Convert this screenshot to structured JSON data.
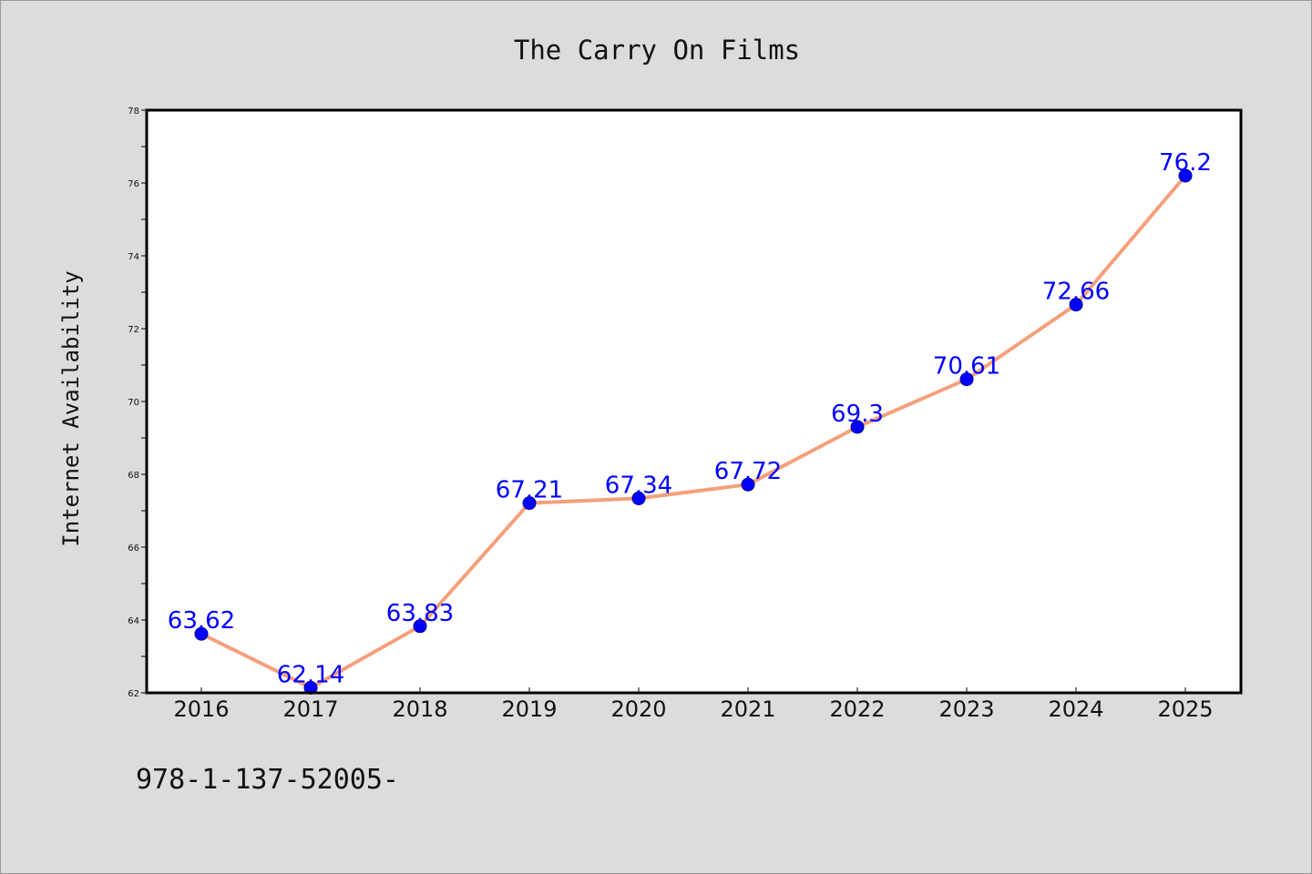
{
  "chart_data": {
    "type": "line",
    "title": "The Carry On Films",
    "xlabel": "",
    "ylabel": "Internet Availability",
    "categories": [
      "2016",
      "2017",
      "2018",
      "2019",
      "2020",
      "2021",
      "2022",
      "2023",
      "2024",
      "2025"
    ],
    "series": [
      {
        "values": [
          63.62,
          62.14,
          63.83,
          67.21,
          67.34,
          67.72,
          69.3,
          70.61,
          72.66,
          76.2
        ],
        "labels": [
          "63.62",
          "62.14",
          "63.83",
          "67.21",
          "67.34",
          "67.72",
          "69.3",
          "70.61",
          "72.66",
          "76.2"
        ],
        "line_color": "#f4a07c",
        "marker_color": "#0000ff"
      }
    ],
    "ylim": [
      62,
      78
    ],
    "yticks": [
      62,
      64,
      66,
      68,
      70,
      72,
      74,
      76,
      78
    ],
    "ytick_labels": [
      "62",
      "64",
      "66",
      "68",
      "70",
      "72",
      "74",
      "76",
      "78"
    ],
    "grid": false,
    "legend": "none",
    "label_color": "#0000ff"
  },
  "footer": {
    "text": "978-1-137-52005-"
  }
}
